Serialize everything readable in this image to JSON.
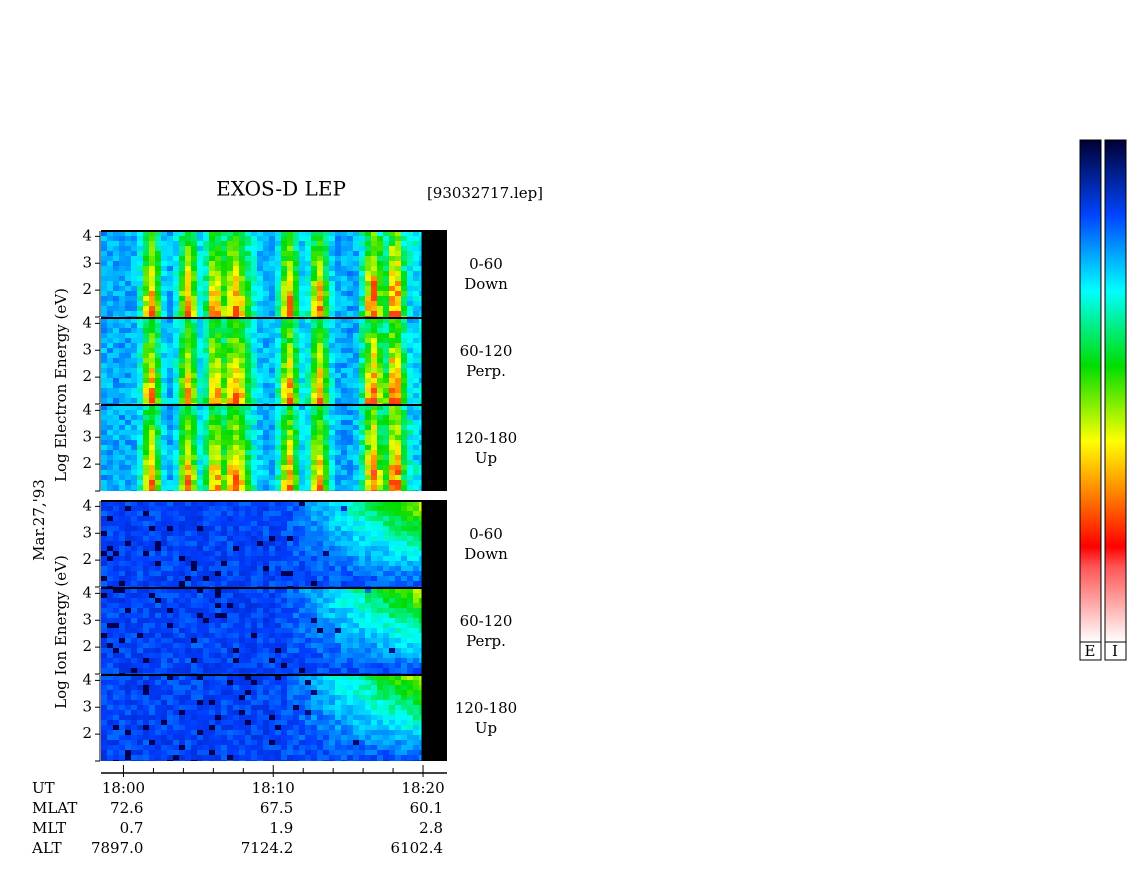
{
  "title": "EXOS-D LEP",
  "file": "[93032717.lep]",
  "date": "Mar.27,'93",
  "electron_label": "Log Electron Energy (eV)",
  "ion_label": "Log Ion Energy (eV)",
  "panels": [
    {
      "group": "electron",
      "angle": "0-60",
      "direction": "Down"
    },
    {
      "group": "electron",
      "angle": "60-120",
      "direction": "Perp."
    },
    {
      "group": "electron",
      "angle": "120-180",
      "direction": "Up"
    },
    {
      "group": "ion",
      "angle": "0-60",
      "direction": "Down"
    },
    {
      "group": "ion",
      "angle": "60-120",
      "direction": "Perp."
    },
    {
      "group": "ion",
      "angle": "120-180",
      "direction": "Up"
    }
  ],
  "ylim": [
    1,
    4.2
  ],
  "yticks": [
    2,
    3,
    4
  ],
  "xlim": [
    -1.5,
    21.6
  ],
  "data_end": 19.9,
  "xticks": [
    {
      "value": 0,
      "label": "18:00"
    },
    {
      "value": 10,
      "label": "18:10"
    },
    {
      "value": 20,
      "label": "18:20"
    }
  ],
  "minor_xticks": [
    2,
    4,
    6,
    8,
    12,
    14,
    16,
    18
  ],
  "ut_label": "UT",
  "orbit": [
    {
      "label": "MLAT",
      "values": [
        "72.6",
        "67.5",
        "60.1"
      ]
    },
    {
      "label": "MLT",
      "values": [
        "0.7",
        "1.9",
        "2.8"
      ]
    },
    {
      "label": "ALT",
      "values": [
        "7897.0",
        "7124.2",
        "6102.4"
      ]
    }
  ],
  "colorbar_labels": [
    "E",
    "I"
  ]
}
